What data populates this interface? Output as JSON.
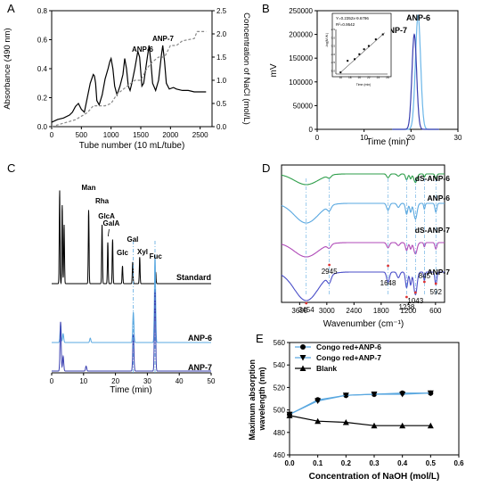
{
  "chart_data": [
    {
      "panel": "A",
      "type": "line",
      "xlabel": "Tube number (10 mL/tube)",
      "ylabel": "Absorbance (490 nm)",
      "y2label": "Concentration of NaCl (mol/L)",
      "xlim": [
        0,
        2700
      ],
      "ylim": [
        0,
        0.8
      ],
      "y2lim": [
        0,
        2.5
      ],
      "xticks": [
        "0",
        "500",
        "1000",
        "1500",
        "2000",
        "2500"
      ],
      "yticks": [
        "0.0",
        "0.2",
        "0.4",
        "0.6",
        "0.8"
      ],
      "y2ticks": [
        "0.0",
        "0.5",
        "1.0",
        "1.5",
        "2.0",
        "2.5"
      ],
      "annotations": [
        "ANP-6",
        "ANP-7"
      ],
      "series": [
        {
          "style": "solid",
          "color": "#000000",
          "x": [
            0,
            100,
            200,
            300,
            350,
            400,
            450,
            500,
            550,
            600,
            650,
            700,
            720,
            740,
            760,
            800,
            850,
            900,
            950,
            980,
            1000,
            1030,
            1060,
            1100,
            1150,
            1200,
            1230,
            1260,
            1290,
            1320,
            1350,
            1400,
            1450,
            1480,
            1500,
            1520,
            1550,
            1600,
            1640,
            1670,
            1700,
            1750,
            1800,
            1850,
            1870,
            1900,
            1930,
            1980,
            2050,
            2100,
            2200,
            2300,
            2400,
            2500,
            2600
          ],
          "y": [
            0.03,
            0.05,
            0.06,
            0.08,
            0.1,
            0.14,
            0.16,
            0.12,
            0.1,
            0.2,
            0.3,
            0.36,
            0.35,
            0.3,
            0.18,
            0.15,
            0.22,
            0.33,
            0.4,
            0.45,
            0.47,
            0.4,
            0.28,
            0.22,
            0.28,
            0.36,
            0.47,
            0.4,
            0.28,
            0.25,
            0.3,
            0.4,
            0.52,
            0.48,
            0.38,
            0.28,
            0.3,
            0.45,
            0.56,
            0.45,
            0.3,
            0.25,
            0.32,
            0.5,
            0.56,
            0.45,
            0.3,
            0.26,
            0.27,
            0.26,
            0.25,
            0.25,
            0.24,
            0.24,
            0.24
          ]
        },
        {
          "style": "dashed",
          "color": "#888888",
          "x": [
            0,
            400,
            600,
            700,
            900,
            1000,
            1100,
            1400,
            1500,
            1600,
            1700,
            1800,
            1900,
            2000,
            2100,
            2200,
            2400,
            2450,
            2600
          ],
          "y": [
            0.0,
            0.15,
            0.3,
            0.45,
            0.45,
            0.5,
            0.7,
            1.0,
            1.0,
            1.25,
            1.4,
            1.5,
            1.5,
            1.75,
            1.75,
            1.85,
            1.9,
            2.05,
            2.05
          ]
        }
      ]
    },
    {
      "panel": "B",
      "type": "line",
      "xlabel": "Time (min)",
      "ylabel": "mV",
      "xlim": [
        0,
        30
      ],
      "ylim": [
        0,
        250000
      ],
      "xticks": [
        "0",
        "10",
        "20",
        "30"
      ],
      "yticks": [
        "0",
        "50000",
        "100000",
        "150000",
        "200000",
        "250000"
      ],
      "labels": [
        "ANP-6",
        "ANP-7"
      ],
      "series": [
        {
          "name": "ANP-6",
          "color": "#6bb6e8",
          "peak_x": 21.5,
          "peak_y": 240000,
          "width": 0.55
        },
        {
          "name": "ANP-7",
          "color": "#3a3fb0",
          "peak_x": 20.7,
          "peak_y": 200000,
          "width": 0.5
        }
      ],
      "inset": {
        "equation": "Y=0.2352x-9.6796",
        "r2": "R²=0.9542",
        "xlabel": "Time (min)",
        "ylabel": "-log(M.W.)",
        "xticks": [
          "16",
          "18",
          "20",
          "22",
          "24",
          "26"
        ],
        "yticks": [
          "-5.0",
          "-4.5",
          "-4.0",
          "-3.5",
          "-3.0",
          "-2.5"
        ],
        "xlim": [
          15,
          26
        ],
        "ylim": [
          -5.2,
          -2.5
        ],
        "x": [
          16,
          17.5,
          19,
          20,
          21,
          22,
          23.5,
          25
        ],
        "y": [
          -5.1,
          -4.4,
          -4.3,
          -4.0,
          -3.7,
          -3.5,
          -3.1,
          -2.8
        ]
      }
    },
    {
      "panel": "C",
      "type": "line",
      "xlabel": "Time (min)",
      "xlim": [
        0,
        50
      ],
      "xticks": [
        "0",
        "10",
        "20",
        "30",
        "40",
        "50"
      ],
      "trace_names": [
        "Standard",
        "ANP-6",
        "ANP-7"
      ],
      "peak_labels": [
        "Man",
        "Rha",
        "GlcA",
        "GalA",
        "Glc",
        "Gal",
        "Xyl",
        "Fuc"
      ],
      "standard_peaks": [
        {
          "t": 2.5,
          "h": 0.95
        },
        {
          "t": 3.3,
          "h": 0.8
        },
        {
          "t": 3.9,
          "h": 0.6
        },
        {
          "t": 11.6,
          "h": 0.75
        },
        {
          "t": 15.8,
          "h": 0.6
        },
        {
          "t": 17.6,
          "h": 0.42
        },
        {
          "t": 19.1,
          "h": 0.45
        },
        {
          "t": 22.2,
          "h": 0.18
        },
        {
          "t": 25.4,
          "h": 0.22
        },
        {
          "t": 27.6,
          "h": 0.27
        },
        {
          "t": 32.6,
          "h": 0.12
        }
      ],
      "anp6_peaks": [
        {
          "t": 2.8,
          "h": 0.2
        },
        {
          "t": 3.6,
          "h": 0.1
        },
        {
          "t": 12.1,
          "h": 0.05
        },
        {
          "t": 25.6,
          "h": 0.35
        },
        {
          "t": 32.4,
          "h": 1.0
        }
      ],
      "anp7_peaks": [
        {
          "t": 2.8,
          "h": 0.6
        },
        {
          "t": 3.6,
          "h": 0.18
        },
        {
          "t": 10.8,
          "h": 0.06
        },
        {
          "t": 25.6,
          "h": 0.45
        },
        {
          "t": 32.4,
          "h": 1.0
        }
      ]
    },
    {
      "panel": "D",
      "type": "line",
      "xlabel": "Wavenumber (cm⁻¹)",
      "xlim": [
        4000,
        400
      ],
      "xticks": [
        "3600",
        "3000",
        "2400",
        "1800",
        "1200",
        "600"
      ],
      "trace_names": [
        "dS-ANP-6",
        "ANP-6",
        "dS-ANP-7",
        "ANP-7"
      ],
      "trace_colors": [
        "#2e9e4a",
        "#5aa8e0",
        "#b04bb8",
        "#4a4ec8"
      ],
      "peak_labels": [
        "3454",
        "2945",
        "1648",
        "1238",
        "1043",
        "845",
        "592"
      ]
    },
    {
      "panel": "E",
      "type": "line",
      "xlabel": "Concentration of  NaOH  (mol/L)",
      "ylabel": "Maximum absorption wavelength (nm)",
      "xlim": [
        0.0,
        0.6
      ],
      "ylim": [
        460,
        560
      ],
      "xticks": [
        "0.0",
        "0.1",
        "0.2",
        "0.3",
        "0.4",
        "0.5",
        "0.6"
      ],
      "yticks": [
        "460",
        "480",
        "500",
        "520",
        "540",
        "560"
      ],
      "x": [
        0,
        0.1,
        0.2,
        0.3,
        0.4,
        0.5
      ],
      "series": [
        {
          "name": "Congo red+ANP-6",
          "marker": "circle",
          "values": [
            496,
            509,
            513,
            514,
            515,
            515
          ]
        },
        {
          "name": "Congo red+ANP-7",
          "marker": "triangle-down",
          "values": [
            496,
            508,
            513,
            514,
            514,
            515
          ]
        },
        {
          "name": "Blank",
          "marker": "triangle-up",
          "values": [
            495,
            490,
            489,
            486,
            486,
            486
          ]
        }
      ]
    }
  ],
  "panel_letters": [
    "A",
    "B",
    "C",
    "D",
    "E"
  ],
  "colors": {
    "curve_blue": "#5aa8e0",
    "line_dark": "#000000"
  }
}
